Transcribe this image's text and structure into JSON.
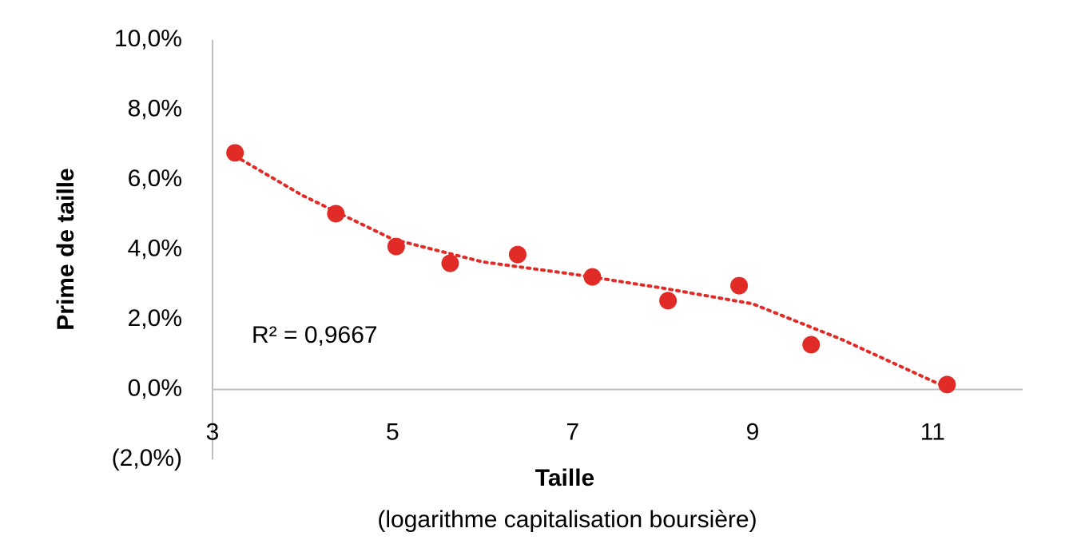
{
  "chart_data": {
    "type": "scatter",
    "xlabel": "Taille",
    "xlabel_note": "(logarithme capitalisation boursière)",
    "ylabel": "Prime de taille",
    "annotation": "R² = 0,9667",
    "x": [
      3.25,
      4.37,
      5.04,
      5.64,
      6.39,
      7.22,
      8.06,
      8.85,
      9.65,
      11.16
    ],
    "values": [
      6.77,
      5.03,
      4.09,
      3.61,
      3.86,
      3.22,
      2.54,
      2.97,
      1.28,
      0.14
    ],
    "color": "#e02b27",
    "trendline": {
      "x": [
        3.25,
        4,
        5,
        6,
        7,
        8,
        9,
        10,
        11.16
      ],
      "values": [
        6.68,
        5.55,
        4.3,
        3.65,
        3.3,
        2.9,
        2.45,
        1.42,
        0.05
      ],
      "color": "#e02b27"
    },
    "xlim": [
      3,
      12
    ],
    "xticks": [
      3,
      5,
      7,
      9,
      11
    ],
    "ylim": [
      -2,
      10
    ],
    "yticks": [
      {
        "value": -2,
        "label": "(2,0%)"
      },
      {
        "value": 0,
        "label": "0,0%"
      },
      {
        "value": 2,
        "label": "2,0%"
      },
      {
        "value": 4,
        "label": "4,0%"
      },
      {
        "value": 6,
        "label": "6,0%"
      },
      {
        "value": 8,
        "label": "8,0%"
      },
      {
        "value": 10,
        "label": "10,0%"
      }
    ],
    "grid": false
  }
}
